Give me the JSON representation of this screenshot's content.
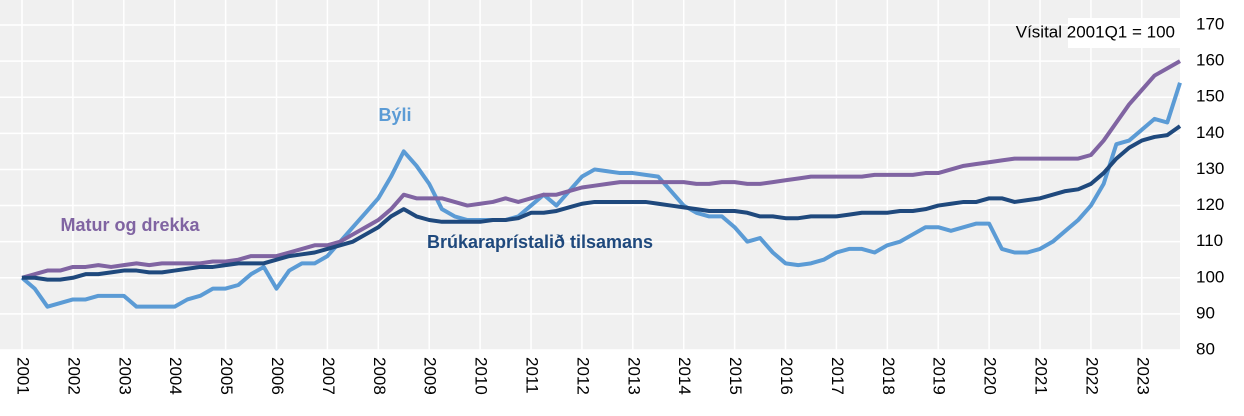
{
  "chart_data": {
    "type": "line",
    "annotation": "Vísital 2001Q1 = 100",
    "x": [
      2001,
      2001.25,
      2001.5,
      2001.75,
      2002,
      2002.25,
      2002.5,
      2002.75,
      2003,
      2003.25,
      2003.5,
      2003.75,
      2004,
      2004.25,
      2004.5,
      2004.75,
      2005,
      2005.25,
      2005.5,
      2005.75,
      2006,
      2006.25,
      2006.5,
      2006.75,
      2007,
      2007.25,
      2007.5,
      2007.75,
      2008,
      2008.25,
      2008.5,
      2008.75,
      2009,
      2009.25,
      2009.5,
      2009.75,
      2010,
      2010.25,
      2010.5,
      2010.75,
      2011,
      2011.25,
      2011.5,
      2011.75,
      2012,
      2012.25,
      2012.5,
      2012.75,
      2013,
      2013.25,
      2013.5,
      2013.75,
      2014,
      2014.25,
      2014.5,
      2014.75,
      2015,
      2015.25,
      2015.5,
      2015.75,
      2016,
      2016.25,
      2016.5,
      2016.75,
      2017,
      2017.25,
      2017.5,
      2017.75,
      2018,
      2018.25,
      2018.5,
      2018.75,
      2019,
      2019.25,
      2019.5,
      2019.75,
      2020,
      2020.25,
      2020.5,
      2020.75,
      2021,
      2021.25,
      2021.5,
      2021.75,
      2022,
      2022.25,
      2022.5,
      2022.75,
      2023,
      2023.25,
      2023.5,
      2023.75
    ],
    "series": [
      {
        "name": "Býli",
        "color": "#5b9bd5",
        "values": [
          100,
          97,
          92,
          93,
          94,
          94,
          95,
          95,
          95,
          92,
          92,
          92,
          92,
          94,
          95,
          97,
          97,
          98,
          101,
          103,
          97,
          102,
          104,
          104,
          106,
          110,
          114,
          118,
          122,
          128,
          135,
          131,
          126,
          119,
          117,
          116,
          116,
          116,
          116,
          117,
          120,
          123,
          120,
          124,
          128,
          130,
          129.5,
          129,
          129,
          128.5,
          128,
          124,
          120,
          118,
          117,
          117,
          114,
          110,
          111,
          107,
          104,
          103.5,
          104,
          105,
          107,
          108,
          108,
          107,
          109,
          110,
          112,
          114,
          114,
          113,
          114,
          115,
          115,
          108,
          107,
          107,
          108,
          110,
          113,
          116,
          120,
          126,
          137,
          138,
          141,
          144,
          143,
          154
        ]
      },
      {
        "name": "Matur og drekka",
        "color": "#8064a2",
        "values": [
          100,
          101,
          102,
          102,
          103,
          103,
          103.5,
          103,
          103.5,
          104,
          103.5,
          104,
          104,
          104,
          104,
          104.5,
          104.5,
          105,
          106,
          106,
          106,
          107,
          108,
          109,
          109,
          110,
          112,
          114,
          116,
          119,
          123,
          122,
          122,
          122,
          121,
          120,
          120.5,
          121,
          122,
          121,
          122,
          123,
          123,
          124,
          125,
          125.5,
          126,
          126.5,
          126.5,
          126.5,
          126.5,
          126.5,
          126.5,
          126,
          126,
          126.5,
          126.5,
          126,
          126,
          126.5,
          127,
          127.5,
          128,
          128,
          128,
          128,
          128,
          128.5,
          128.5,
          128.5,
          128.5,
          129,
          129,
          130,
          131,
          131.5,
          132,
          132.5,
          133,
          133,
          133,
          133,
          133,
          133,
          134,
          138,
          143,
          148,
          152,
          156,
          158,
          160
        ]
      },
      {
        "name": "Brúkaraprístalið tilsamans",
        "color": "#1f497d",
        "values": [
          100,
          100,
          99.5,
          99.5,
          100,
          101,
          101,
          101.5,
          102,
          102,
          101.5,
          101.5,
          102,
          102.5,
          103,
          103,
          103.5,
          104,
          104,
          104,
          105,
          106,
          106.5,
          107,
          108,
          109,
          110,
          112,
          114,
          117,
          119,
          117,
          116,
          115.5,
          115.5,
          115.5,
          115.5,
          116,
          116,
          116.5,
          118,
          118,
          118.5,
          119.5,
          120.5,
          121,
          121,
          121,
          121,
          121,
          120.5,
          120,
          119.5,
          119,
          118.5,
          118.5,
          118.5,
          118,
          117,
          117,
          116.5,
          116.5,
          117,
          117,
          117,
          117.5,
          118,
          118,
          118,
          118.5,
          118.5,
          119,
          120,
          120.5,
          121,
          121,
          122,
          122,
          121,
          121.5,
          122,
          123,
          124,
          124.5,
          126,
          129,
          133,
          136,
          138,
          139,
          139.5,
          142
        ]
      }
    ],
    "xlim": [
      2001,
      2023.75
    ],
    "xticks": [
      2001,
      2002,
      2003,
      2004,
      2005,
      2006,
      2007,
      2008,
      2009,
      2010,
      2011,
      2012,
      2013,
      2014,
      2015,
      2016,
      2017,
      2018,
      2019,
      2020,
      2021,
      2022,
      2023
    ],
    "ylim": [
      80,
      170
    ],
    "yticks": [
      80,
      90,
      100,
      110,
      120,
      130,
      140,
      150,
      160,
      170
    ],
    "grid": true
  }
}
